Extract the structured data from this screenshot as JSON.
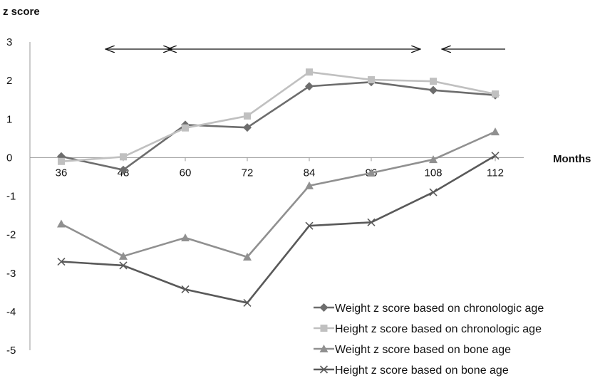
{
  "chart_data": {
    "type": "line",
    "ylabel": "z score",
    "xlabel": "Months",
    "ylim": [
      -5,
      3
    ],
    "yticks": [
      3,
      2,
      1,
      0,
      -1,
      -2,
      -3,
      -4,
      -5
    ],
    "categories": [
      "36",
      "48",
      "60",
      "72",
      "84",
      "96",
      "108",
      "112"
    ],
    "series": [
      {
        "name": "Weight z score based on chronologic age",
        "values": [
          0.03,
          -0.32,
          0.85,
          0.78,
          1.85,
          1.96,
          1.75,
          1.62
        ],
        "color": "#6d6d6d",
        "marker": "diamond"
      },
      {
        "name": "Height z score based on chronologic age",
        "values": [
          -0.1,
          0.02,
          0.77,
          1.08,
          2.22,
          2.02,
          1.98,
          1.65
        ],
        "color": "#c0c0c0",
        "marker": "square"
      },
      {
        "name": "Weight z score based on bone age",
        "values": [
          -1.72,
          -2.56,
          -2.08,
          -2.58,
          -0.73,
          -0.4,
          -0.05,
          0.67
        ],
        "color": "#909090",
        "marker": "triangle"
      },
      {
        "name": "Height z score based on bone age",
        "values": [
          -2.7,
          -2.8,
          -3.42,
          -3.77,
          -1.77,
          -1.68,
          -0.9,
          0.05
        ],
        "color": "#595959",
        "marker": "x"
      }
    ],
    "annotations": [
      {
        "type": "double-arrow",
        "from": "48",
        "to": "60"
      },
      {
        "type": "double-arrow",
        "from": "60",
        "to": "108"
      },
      {
        "type": "left-arrow",
        "from": "108",
        "to": "112"
      }
    ],
    "grid": false,
    "legend": "bottom-right"
  }
}
